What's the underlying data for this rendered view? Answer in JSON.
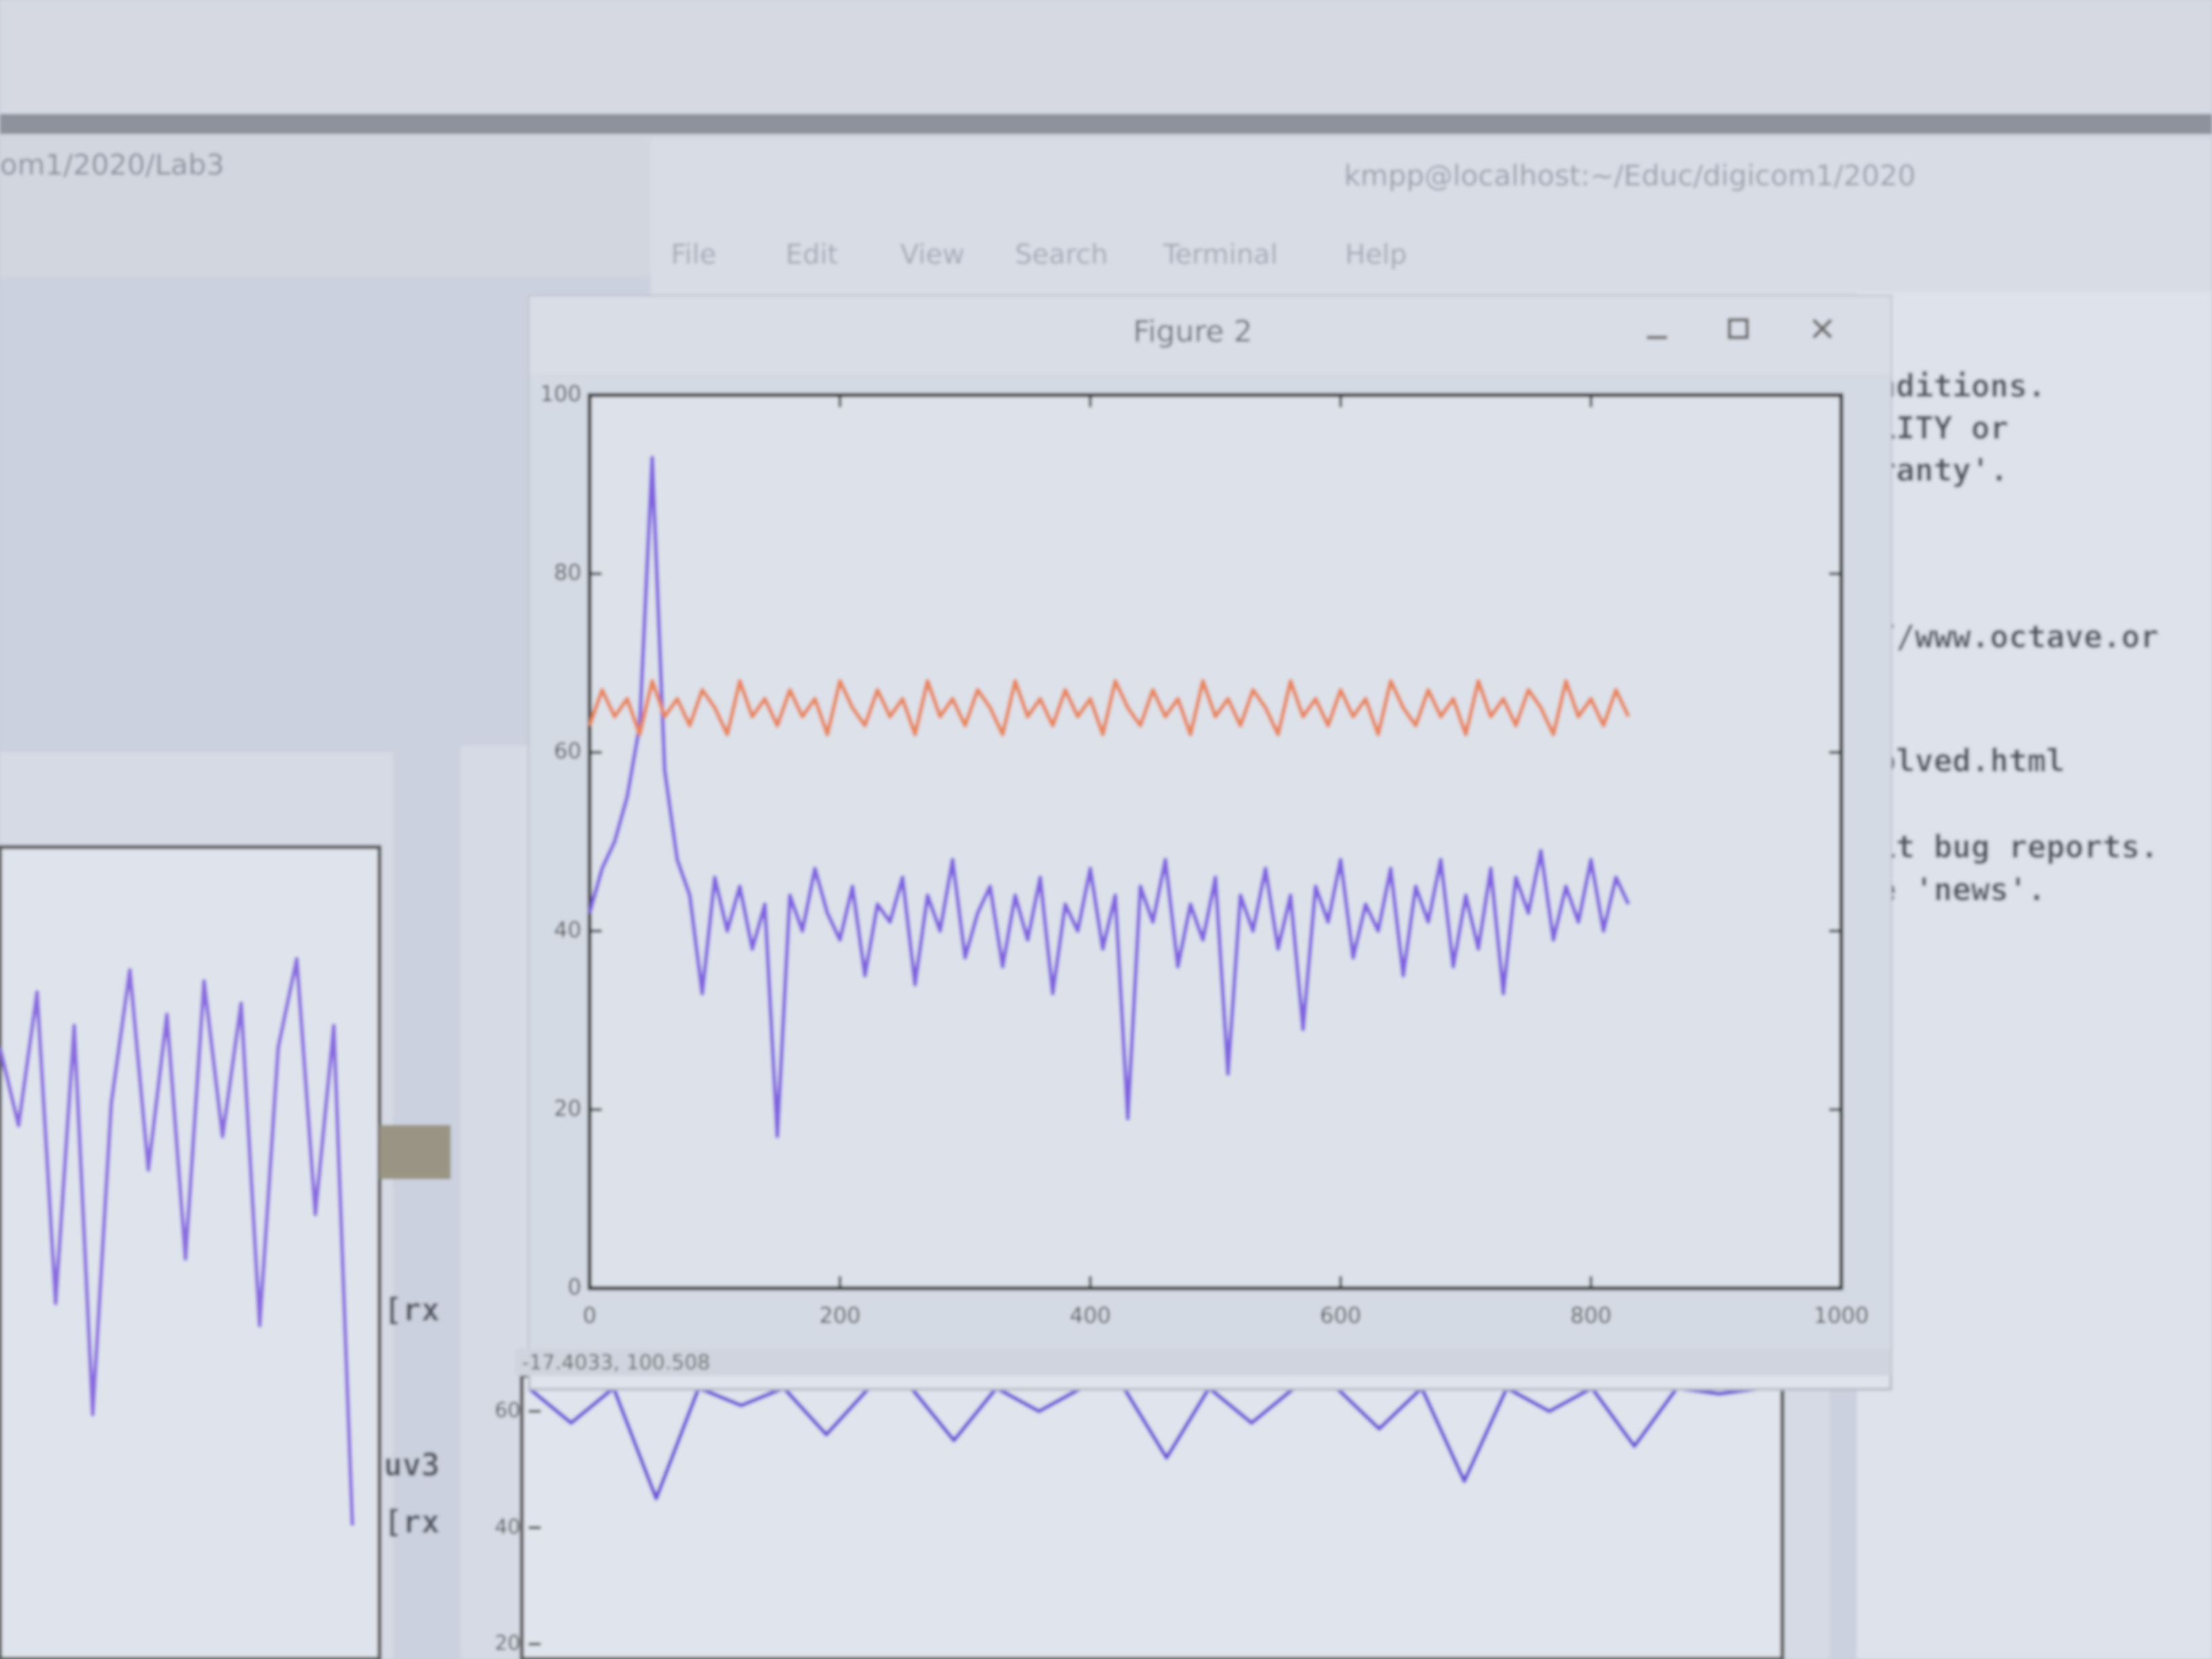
{
  "screen": {
    "left_window_title": "om1/2020/Lab3",
    "terminal_title": "kmpp@localhost:~/Educ/digicom1/2020",
    "menu": [
      "File",
      "Edit",
      "View",
      "Search",
      "Terminal",
      "Help"
    ],
    "terminal_lines": [
      "nditions.",
      "LITY or",
      "ranty'.",
      "//www.octave.or",
      "olved.html",
      "it bug reports.",
      "e 'news'."
    ],
    "left_fragments": [
      "[rx",
      "uv3",
      "[rx"
    ],
    "figure_title": "Figure 2",
    "status": "-17.4033, 100.508"
  },
  "chart_data": [
    {
      "type": "line",
      "x": [
        0,
        10,
        20,
        30,
        40,
        50,
        60,
        70,
        80,
        90,
        100,
        110,
        120,
        130,
        140,
        150,
        160,
        170,
        180,
        190,
        200,
        210,
        220,
        230,
        240,
        250,
        260,
        270,
        280,
        290,
        300,
        310,
        320,
        330,
        340,
        350,
        360,
        370,
        380,
        390,
        400,
        410,
        420,
        430,
        440,
        450,
        460,
        470,
        480,
        490,
        500,
        510,
        520,
        530,
        540,
        550,
        560,
        570,
        580,
        590,
        600,
        610,
        620,
        630,
        640,
        650,
        660,
        670,
        680,
        690,
        700,
        710,
        720,
        730,
        740,
        750,
        760,
        770,
        780,
        790,
        800,
        810,
        820,
        830
      ],
      "series": [
        {
          "color": "#8062e0",
          "values": [
            42,
            47,
            50,
            55,
            63,
            93,
            58,
            48,
            44,
            33,
            46,
            40,
            45,
            38,
            43,
            17,
            44,
            40,
            47,
            42,
            39,
            45,
            35,
            43,
            41,
            46,
            34,
            44,
            40,
            48,
            37,
            42,
            45,
            36,
            44,
            39,
            46,
            33,
            43,
            40,
            47,
            38,
            44,
            19,
            45,
            41,
            48,
            36,
            43,
            39,
            46,
            24,
            44,
            40,
            47,
            38,
            44,
            29,
            45,
            41,
            48,
            37,
            43,
            40,
            47,
            35,
            45,
            41,
            48,
            36,
            44,
            38,
            47,
            33,
            46,
            42,
            49,
            39,
            45,
            41,
            48,
            40,
            46,
            43
          ]
        },
        {
          "color": "#e8855a",
          "values": [
            63,
            67,
            64,
            66,
            62,
            68,
            64,
            66,
            63,
            67,
            65,
            62,
            68,
            64,
            66,
            63,
            67,
            64,
            66,
            62,
            68,
            65,
            63,
            67,
            64,
            66,
            62,
            68,
            64,
            66,
            63,
            67,
            65,
            62,
            68,
            64,
            66,
            63,
            67,
            64,
            66,
            62,
            68,
            65,
            63,
            67,
            64,
            66,
            62,
            68,
            64,
            66,
            63,
            67,
            65,
            62,
            68,
            64,
            66,
            63,
            67,
            64,
            66,
            62,
            68,
            65,
            63,
            67,
            64,
            66,
            62,
            68,
            64,
            66,
            63,
            67,
            65,
            62,
            68,
            64,
            66,
            63,
            67,
            64
          ]
        }
      ],
      "xlim": [
        0,
        1000
      ],
      "ylim": [
        0,
        100
      ],
      "xticks": [
        0,
        200,
        400,
        600,
        800,
        1000
      ],
      "yticks": [
        0,
        20,
        40,
        60,
        80,
        100
      ]
    },
    {
      "type": "line",
      "x": [
        0,
        1,
        2,
        3,
        4,
        5,
        6,
        7,
        8,
        9,
        10,
        11,
        12,
        13,
        14,
        15,
        16,
        17,
        18,
        19,
        20,
        21,
        22,
        23,
        24,
        25,
        26,
        27,
        28,
        29
      ],
      "series": [
        {
          "color": "#6a4fd8",
          "values": [
            64,
            58,
            64,
            45,
            64,
            61,
            64,
            56,
            64,
            64,
            55,
            64,
            60,
            64,
            64,
            52,
            64,
            58,
            64,
            64,
            57,
            64,
            48,
            64,
            60,
            64,
            54,
            64,
            63,
            64
          ]
        }
      ],
      "ylim": [
        20,
        66
      ],
      "yticks": [
        20,
        40,
        60
      ]
    },
    {
      "type": "line",
      "x": [
        0,
        1,
        2,
        3,
        4,
        5,
        6,
        7,
        8,
        9,
        10,
        11,
        12,
        13,
        14,
        15,
        16,
        17,
        18,
        19
      ],
      "series": [
        {
          "color": "#8a6ae0",
          "values": [
            55,
            48,
            60,
            32,
            57,
            22,
            50,
            62,
            44,
            58,
            36,
            61,
            47,
            59,
            30,
            55,
            63,
            40,
            57,
            12
          ]
        }
      ],
      "ylim": [
        0,
        70
      ]
    }
  ]
}
